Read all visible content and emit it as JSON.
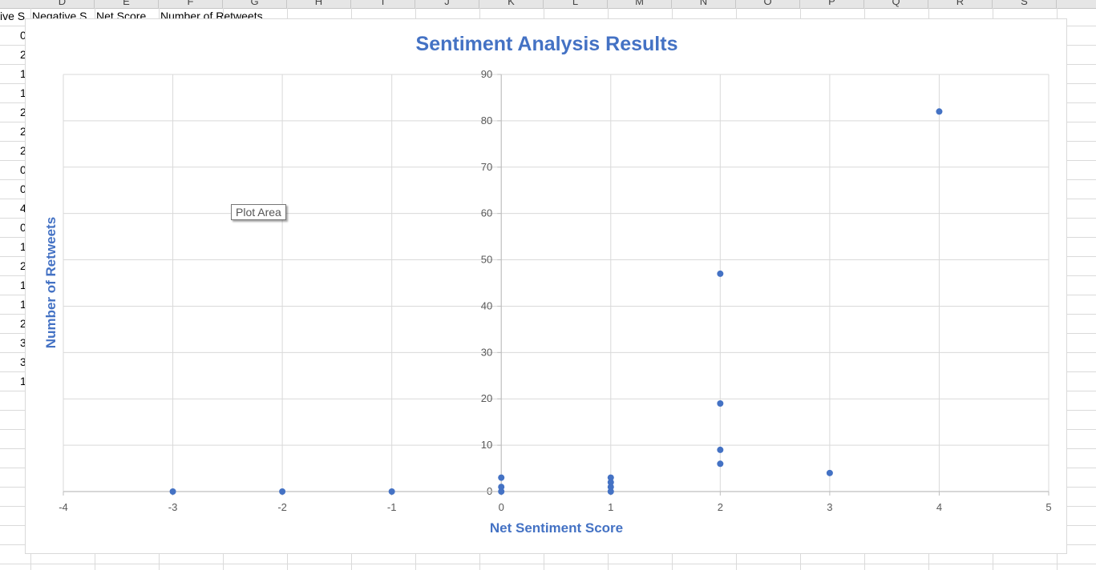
{
  "spreadsheet": {
    "column_headers": [
      "D",
      "E",
      "F",
      "G",
      "H",
      "I",
      "J",
      "K",
      "L",
      "M",
      "N",
      "O",
      "P",
      "Q",
      "R",
      "S"
    ],
    "header_row": [
      "ive S",
      "Negative S",
      "Net Score",
      "Number of Retweets"
    ],
    "col_a_values": [
      "0",
      "2",
      "1",
      "1",
      "2",
      "2",
      "2",
      "0",
      "0",
      "4",
      "0",
      "1",
      "2",
      "1",
      "1",
      "2",
      "3",
      "3",
      "1"
    ]
  },
  "tooltip": {
    "text": "Plot Area"
  },
  "colors": {
    "accent": "#4472c4",
    "gridline": "#d9d9d9",
    "axis": "#bfbfbf",
    "tick_text": "#595959"
  },
  "chart_data": {
    "type": "scatter",
    "title": "Sentiment Analysis Results",
    "xlabel": "Net Sentiment Score",
    "ylabel": "Number of Retweets",
    "xlim": [
      -4,
      5
    ],
    "ylim": [
      0,
      90
    ],
    "x_ticks": [
      -4,
      -3,
      -2,
      -1,
      0,
      1,
      2,
      3,
      4,
      5
    ],
    "y_ticks": [
      0,
      10,
      20,
      30,
      40,
      50,
      60,
      70,
      80,
      90
    ],
    "grid": true,
    "legend": "none",
    "series": [
      {
        "points": [
          [
            -3,
            0
          ],
          [
            -2,
            0
          ],
          [
            -1,
            0
          ],
          [
            0,
            0
          ],
          [
            0,
            1
          ],
          [
            0,
            3
          ],
          [
            1,
            0
          ],
          [
            1,
            1
          ],
          [
            1,
            2
          ],
          [
            1,
            3
          ],
          [
            2,
            47
          ],
          [
            2,
            19
          ],
          [
            2,
            9
          ],
          [
            2,
            6
          ],
          [
            3,
            4
          ],
          [
            4,
            82
          ]
        ]
      }
    ]
  }
}
